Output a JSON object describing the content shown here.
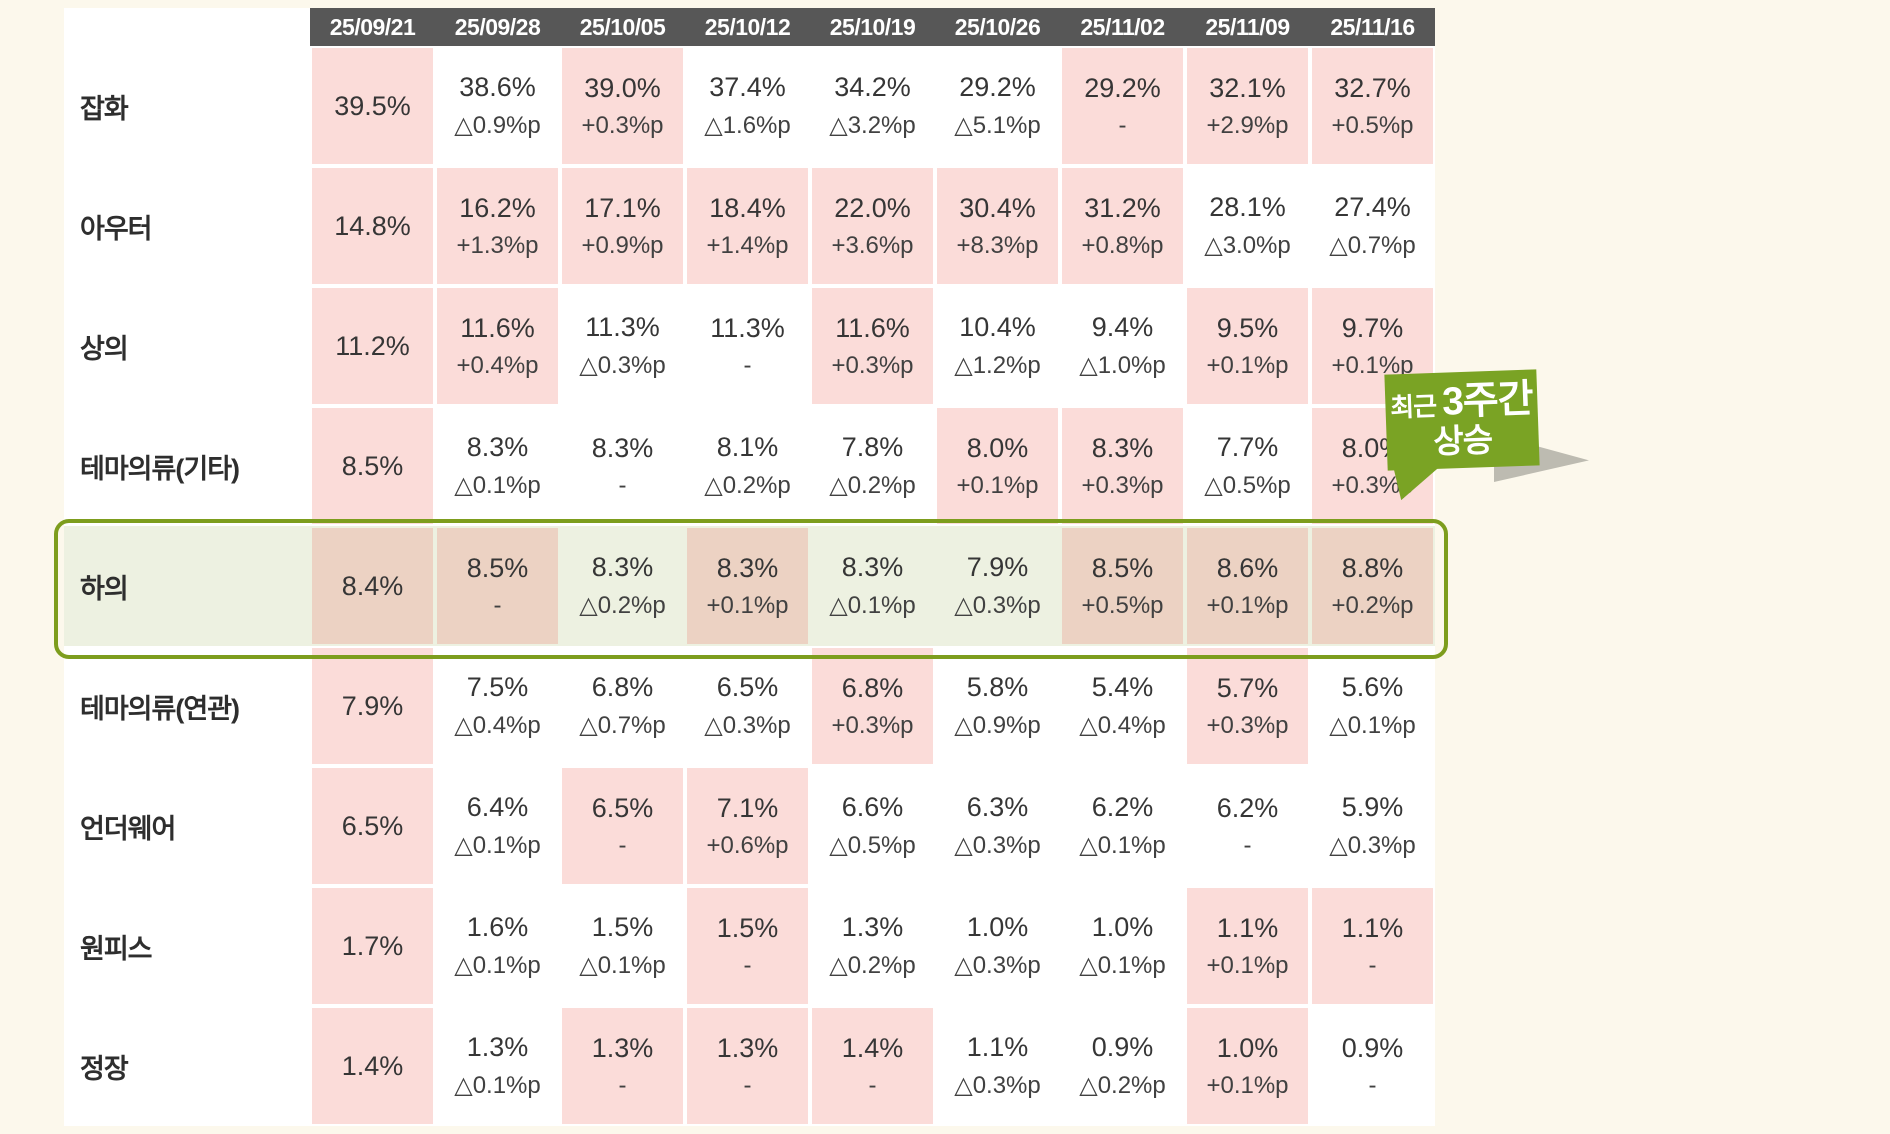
{
  "chart_data": {
    "type": "table",
    "columns": [
      "25/09/21",
      "25/09/28",
      "25/10/05",
      "25/10/12",
      "25/10/19",
      "25/10/26",
      "25/11/02",
      "25/11/09",
      "25/11/16"
    ],
    "rows": [
      {
        "category": "잡화",
        "highlight": false,
        "cells": [
          {
            "value": "39.5%",
            "delta": "",
            "bg": "pink"
          },
          {
            "value": "38.6%",
            "delta": "△0.9%p",
            "bg": "white"
          },
          {
            "value": "39.0%",
            "delta": "+0.3%p",
            "bg": "pink"
          },
          {
            "value": "37.4%",
            "delta": "△1.6%p",
            "bg": "white"
          },
          {
            "value": "34.2%",
            "delta": "△3.2%p",
            "bg": "white"
          },
          {
            "value": "29.2%",
            "delta": "△5.1%p",
            "bg": "white"
          },
          {
            "value": "29.2%",
            "delta": "-",
            "bg": "pink"
          },
          {
            "value": "32.1%",
            "delta": "+2.9%p",
            "bg": "pink"
          },
          {
            "value": "32.7%",
            "delta": "+0.5%p",
            "bg": "pink"
          }
        ]
      },
      {
        "category": "아우터",
        "highlight": false,
        "cells": [
          {
            "value": "14.8%",
            "delta": "",
            "bg": "pink"
          },
          {
            "value": "16.2%",
            "delta": "+1.3%p",
            "bg": "pink"
          },
          {
            "value": "17.1%",
            "delta": "+0.9%p",
            "bg": "pink"
          },
          {
            "value": "18.4%",
            "delta": "+1.4%p",
            "bg": "pink"
          },
          {
            "value": "22.0%",
            "delta": "+3.6%p",
            "bg": "pink"
          },
          {
            "value": "30.4%",
            "delta": "+8.3%p",
            "bg": "pink"
          },
          {
            "value": "31.2%",
            "delta": "+0.8%p",
            "bg": "pink"
          },
          {
            "value": "28.1%",
            "delta": "△3.0%p",
            "bg": "white"
          },
          {
            "value": "27.4%",
            "delta": "△0.7%p",
            "bg": "white"
          }
        ]
      },
      {
        "category": "상의",
        "highlight": false,
        "cells": [
          {
            "value": "11.2%",
            "delta": "",
            "bg": "pink"
          },
          {
            "value": "11.6%",
            "delta": "+0.4%p",
            "bg": "pink"
          },
          {
            "value": "11.3%",
            "delta": "△0.3%p",
            "bg": "white"
          },
          {
            "value": "11.3%",
            "delta": "-",
            "bg": "white"
          },
          {
            "value": "11.6%",
            "delta": "+0.3%p",
            "bg": "pink"
          },
          {
            "value": "10.4%",
            "delta": "△1.2%p",
            "bg": "white"
          },
          {
            "value": "9.4%",
            "delta": "△1.0%p",
            "bg": "white"
          },
          {
            "value": "9.5%",
            "delta": "+0.1%p",
            "bg": "pink"
          },
          {
            "value": "9.7%",
            "delta": "+0.1%p",
            "bg": "pink"
          }
        ]
      },
      {
        "category": "테마의류(기타)",
        "highlight": false,
        "cells": [
          {
            "value": "8.5%",
            "delta": "",
            "bg": "pink"
          },
          {
            "value": "8.3%",
            "delta": "△0.1%p",
            "bg": "white"
          },
          {
            "value": "8.3%",
            "delta": "-",
            "bg": "white"
          },
          {
            "value": "8.1%",
            "delta": "△0.2%p",
            "bg": "white"
          },
          {
            "value": "7.8%",
            "delta": "△0.2%p",
            "bg": "white"
          },
          {
            "value": "8.0%",
            "delta": "+0.1%p",
            "bg": "pink"
          },
          {
            "value": "8.3%",
            "delta": "+0.3%p",
            "bg": "pink"
          },
          {
            "value": "7.7%",
            "delta": "△0.5%p",
            "bg": "white"
          },
          {
            "value": "8.0%",
            "delta": "+0.3%p",
            "bg": "pink"
          }
        ]
      },
      {
        "category": "하의",
        "highlight": true,
        "cells": [
          {
            "value": "8.4%",
            "delta": "",
            "bg": "tan"
          },
          {
            "value": "8.5%",
            "delta": "-",
            "bg": "tan"
          },
          {
            "value": "8.3%",
            "delta": "△0.2%p",
            "bg": "green"
          },
          {
            "value": "8.3%",
            "delta": "+0.1%p",
            "bg": "tan"
          },
          {
            "value": "8.3%",
            "delta": "△0.1%p",
            "bg": "green"
          },
          {
            "value": "7.9%",
            "delta": "△0.3%p",
            "bg": "green"
          },
          {
            "value": "8.5%",
            "delta": "+0.5%p",
            "bg": "tan"
          },
          {
            "value": "8.6%",
            "delta": "+0.1%p",
            "bg": "tan"
          },
          {
            "value": "8.8%",
            "delta": "+0.2%p",
            "bg": "tan"
          }
        ]
      },
      {
        "category": "테마의류(연관)",
        "highlight": false,
        "cells": [
          {
            "value": "7.9%",
            "delta": "",
            "bg": "pink"
          },
          {
            "value": "7.5%",
            "delta": "△0.4%p",
            "bg": "white"
          },
          {
            "value": "6.8%",
            "delta": "△0.7%p",
            "bg": "white"
          },
          {
            "value": "6.5%",
            "delta": "△0.3%p",
            "bg": "white"
          },
          {
            "value": "6.8%",
            "delta": "+0.3%p",
            "bg": "pink"
          },
          {
            "value": "5.8%",
            "delta": "△0.9%p",
            "bg": "white"
          },
          {
            "value": "5.4%",
            "delta": "△0.4%p",
            "bg": "white"
          },
          {
            "value": "5.7%",
            "delta": "+0.3%p",
            "bg": "pink"
          },
          {
            "value": "5.6%",
            "delta": "△0.1%p",
            "bg": "white"
          }
        ]
      },
      {
        "category": "언더웨어",
        "highlight": false,
        "cells": [
          {
            "value": "6.5%",
            "delta": "",
            "bg": "pink"
          },
          {
            "value": "6.4%",
            "delta": "△0.1%p",
            "bg": "white"
          },
          {
            "value": "6.5%",
            "delta": "-",
            "bg": "pink"
          },
          {
            "value": "7.1%",
            "delta": "+0.6%p",
            "bg": "pink"
          },
          {
            "value": "6.6%",
            "delta": "△0.5%p",
            "bg": "white"
          },
          {
            "value": "6.3%",
            "delta": "△0.3%p",
            "bg": "white"
          },
          {
            "value": "6.2%",
            "delta": "△0.1%p",
            "bg": "white"
          },
          {
            "value": "6.2%",
            "delta": "-",
            "bg": "white"
          },
          {
            "value": "5.9%",
            "delta": "△0.3%p",
            "bg": "white"
          }
        ]
      },
      {
        "category": "원피스",
        "highlight": false,
        "cells": [
          {
            "value": "1.7%",
            "delta": "",
            "bg": "pink"
          },
          {
            "value": "1.6%",
            "delta": "△0.1%p",
            "bg": "white"
          },
          {
            "value": "1.5%",
            "delta": "△0.1%p",
            "bg": "white"
          },
          {
            "value": "1.5%",
            "delta": "-",
            "bg": "pink"
          },
          {
            "value": "1.3%",
            "delta": "△0.2%p",
            "bg": "white"
          },
          {
            "value": "1.0%",
            "delta": "△0.3%p",
            "bg": "white"
          },
          {
            "value": "1.0%",
            "delta": "△0.1%p",
            "bg": "white"
          },
          {
            "value": "1.1%",
            "delta": "+0.1%p",
            "bg": "pink"
          },
          {
            "value": "1.1%",
            "delta": "-",
            "bg": "pink"
          }
        ]
      },
      {
        "category": "정장",
        "highlight": false,
        "cells": [
          {
            "value": "1.4%",
            "delta": "",
            "bg": "pink"
          },
          {
            "value": "1.3%",
            "delta": "△0.1%p",
            "bg": "white"
          },
          {
            "value": "1.3%",
            "delta": "-",
            "bg": "pink"
          },
          {
            "value": "1.3%",
            "delta": "-",
            "bg": "pink"
          },
          {
            "value": "1.4%",
            "delta": "-",
            "bg": "pink"
          },
          {
            "value": "1.1%",
            "delta": "△0.3%p",
            "bg": "white"
          },
          {
            "value": "0.9%",
            "delta": "△0.2%p",
            "bg": "white"
          },
          {
            "value": "1.0%",
            "delta": "+0.1%p",
            "bg": "pink"
          },
          {
            "value": "0.9%",
            "delta": "-",
            "bg": "white"
          }
        ]
      }
    ]
  },
  "callout": {
    "text_small": "최근",
    "text_big": "3주간",
    "text_line2": "상승"
  },
  "colors": {
    "page_bg": "#fcf8ec",
    "header_bg": "#575757",
    "header_text": "#ffffff",
    "cell_pink": "#fbdcd9",
    "cell_white": "#ffffff",
    "highlight_pink": "#ecd2c3",
    "highlight_green": "#edf1e1",
    "highlight_border": "#7d9d1d",
    "callout_bg": "#7aa324",
    "callout_text": "#ffffff"
  }
}
